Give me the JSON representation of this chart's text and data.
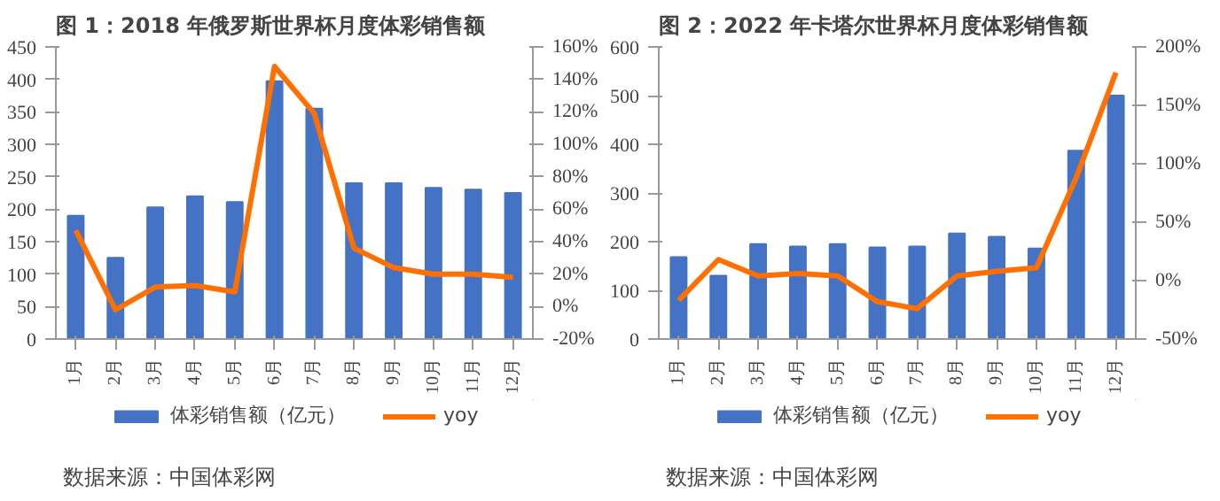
{
  "chart_data": [
    {
      "type": "bar",
      "title": "图 1：2018 年俄罗斯世界杯月度体彩销售额",
      "categories": [
        "1月",
        "2月",
        "3月",
        "4月",
        "5月",
        "6月",
        "7月",
        "8月",
        "9月",
        "10月",
        "11月",
        "12月"
      ],
      "series": [
        {
          "name": "体彩销售额（亿元）",
          "color": "#4472c4",
          "values": [
            190,
            125,
            203,
            220,
            211,
            397,
            355,
            240,
            240,
            233,
            230,
            225
          ]
        },
        {
          "name": "yoy",
          "type": "line",
          "axis": "y2",
          "color": "#ff7000",
          "values": [
            47,
            -2,
            12,
            13,
            9,
            148,
            119,
            36,
            24,
            20,
            20,
            18
          ]
        }
      ],
      "ylim": [
        0,
        450
      ],
      "yticks": [
        0,
        50,
        100,
        150,
        200,
        250,
        300,
        350,
        400,
        450
      ],
      "y2lim": [
        -20,
        160
      ],
      "y2ticks": [
        {
          "value": -20,
          "label": "-20%"
        },
        {
          "value": 0,
          "label": "0%"
        },
        {
          "value": 20,
          "label": "20%"
        },
        {
          "value": 40,
          "label": "40%"
        },
        {
          "value": 60,
          "label": "60%"
        },
        {
          "value": 80,
          "label": "80%"
        },
        {
          "value": 100,
          "label": "100%"
        },
        {
          "value": 120,
          "label": "120%"
        },
        {
          "value": 140,
          "label": "140%"
        },
        {
          "value": 160,
          "label": "160%"
        }
      ],
      "grid": false,
      "legend": "bottom",
      "annotations": [
        "数据来源：中国体彩网"
      ]
    },
    {
      "type": "bar",
      "title": "图 2：2022 年卡塔尔世界杯月度体彩销售额",
      "categories": [
        "1月",
        "2月",
        "3月",
        "4月",
        "5月",
        "6月",
        "7月",
        "8月",
        "9月",
        "10月",
        "11月",
        "12月"
      ],
      "series": [
        {
          "name": "体彩销售额（亿元）",
          "color": "#4472c4",
          "values": [
            168,
            130,
            195,
            190,
            195,
            188,
            190,
            217,
            210,
            186,
            387,
            500
          ]
        },
        {
          "name": "yoy",
          "type": "line",
          "axis": "y2",
          "color": "#ff7000",
          "values": [
            -17,
            18,
            4,
            6,
            4,
            -18,
            -24,
            4,
            8,
            11,
            88,
            178
          ]
        }
      ],
      "ylim": [
        0,
        600
      ],
      "yticks": [
        0,
        100,
        200,
        300,
        400,
        500,
        600
      ],
      "y2lim": [
        -50,
        200
      ],
      "y2ticks": [
        {
          "value": -50,
          "label": "-50%"
        },
        {
          "value": 0,
          "label": "0%"
        },
        {
          "value": 50,
          "label": "50%"
        },
        {
          "value": 100,
          "label": "100%"
        },
        {
          "value": 150,
          "label": "150%"
        },
        {
          "value": 200,
          "label": "200%"
        }
      ],
      "grid": false,
      "legend": "bottom",
      "annotations": [
        "数据来源：中国体彩网"
      ]
    }
  ]
}
